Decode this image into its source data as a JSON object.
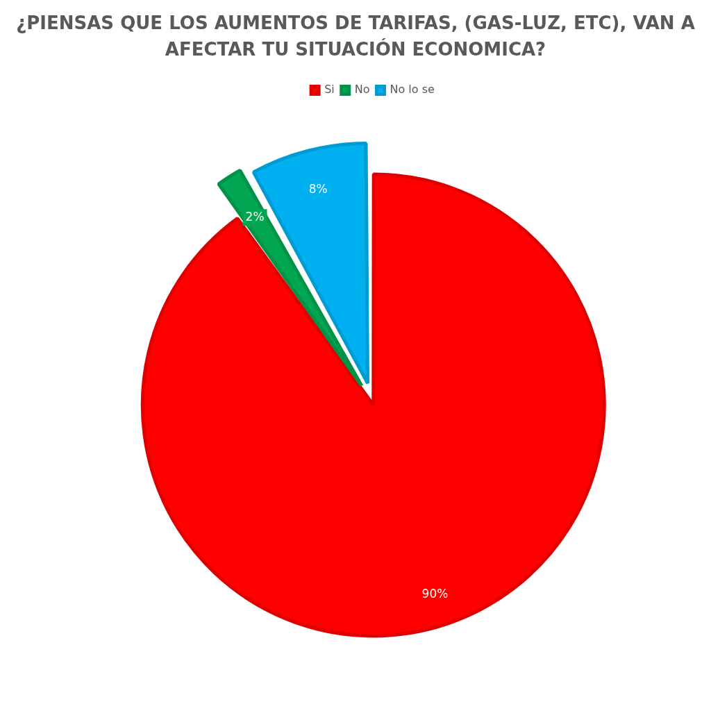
{
  "chart_data": {
    "type": "pie",
    "title": "¿PIENSAS QUE LOS AUMENTOS DE TARIFAS, (GAS-LUZ, ETC), VAN A AFECTAR TU SITUACIÓN ECONOMICA?",
    "categories": [
      "Si",
      "No",
      "No lo se"
    ],
    "values": [
      90,
      2,
      8
    ],
    "colors": [
      "#ff0000",
      "#00a651",
      "#00b0f0"
    ],
    "value_labels": [
      "90%",
      "2%",
      "8%"
    ],
    "legend": "top"
  }
}
